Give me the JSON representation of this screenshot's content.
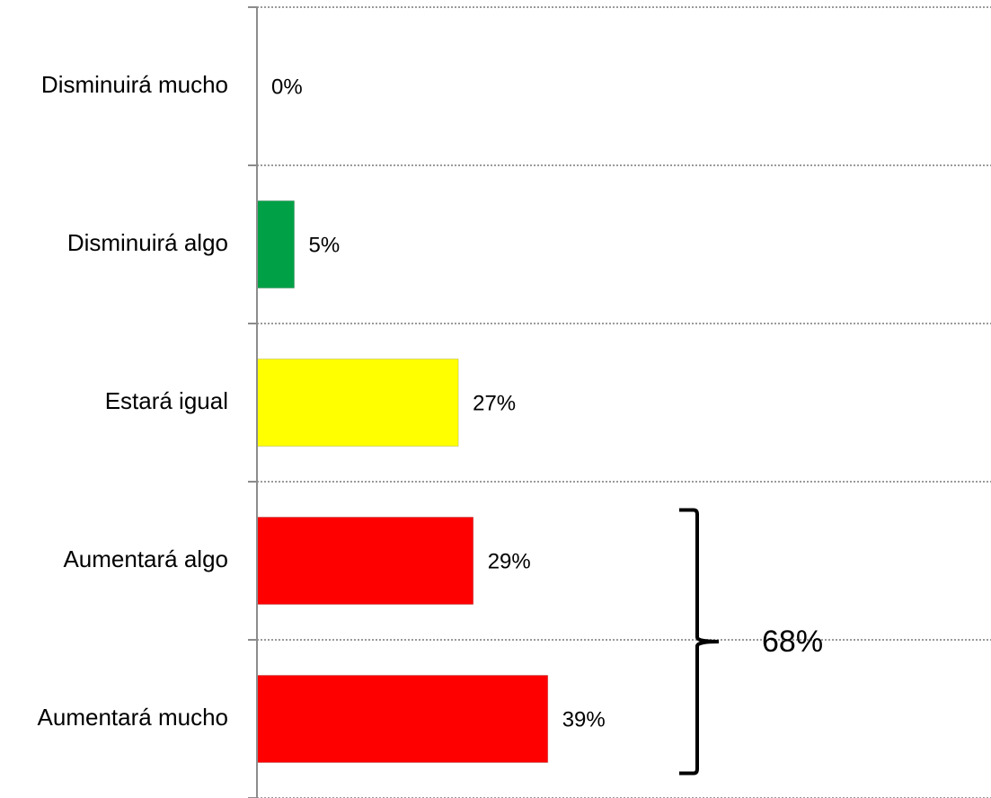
{
  "chart_data": {
    "type": "bar",
    "orientation": "horizontal",
    "categories": [
      "Disminuirá mucho",
      "Disminuirá algo",
      "Estará igual",
      "Aumentará algo",
      "Aumentará mucho"
    ],
    "values": [
      0,
      5,
      27,
      29,
      39
    ],
    "data_labels": [
      "0%",
      "5%",
      "27%",
      "29%",
      "39%"
    ],
    "bar_colors": [
      "#00a046",
      "#00a046",
      "#ffff00",
      "#ff0000",
      "#ff0000"
    ],
    "grid": true,
    "grid_style": "dotted",
    "annotation": {
      "type": "brace",
      "covers": [
        "Aumentará algo",
        "Aumentará mucho"
      ],
      "label": "68%"
    }
  }
}
